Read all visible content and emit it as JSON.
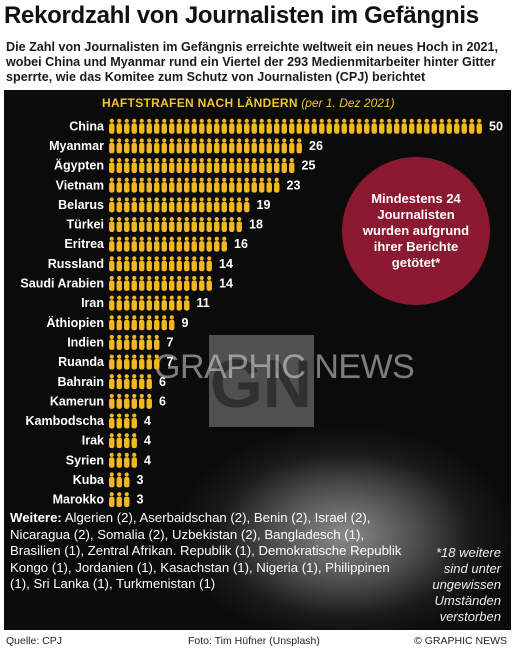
{
  "title": "Rekordzahl von Journalisten im Gefängnis",
  "subtitle": "Die Zahl von Journalisten im Gefängnis erreichte weltweit ein neues Hoch in 2021, wobei China und Myanmar rund ein Viertel der 293 Medienmitarbeiter hinter Gitter sperrte, wie das Komitee zum Schutz von Journalisten (CPJ) berichtet",
  "panel_header": {
    "caps": "HAFTSTRAFEN NACH LÄNDERN",
    "note": "(per 1. Dez 2021)"
  },
  "callout": "Mindestens 24 Journalisten wurden aufgrund ihrer Berichte getötet*",
  "others_label": "Weitere:",
  "others_text": "Algerien (2), Aserbaidschan (2), Benin (2), Israel (2), Nicaragua (2), Somalia (2), Uzbekistan (2), Bangladesch (1), Brasilien (1), Zentral Afrikan. Republik (1), Demokratische Republik Kongo (1), Jordanien (1), Kasachstan (1), Nigeria (1), Philippinen (1), Sri Lanka (1), Turkmenistan (1)",
  "footnote": "*18 weitere sind unter ungewissen Umständen verstorben",
  "watermark": "GRAPHIC NEWS",
  "watermark_logo": "GN",
  "footer": {
    "source": "Quelle: CPJ",
    "photo": "Foto: Tim Hüfner (Unsplash)",
    "copyright": "© GRAPHIC NEWS"
  },
  "colors": {
    "figure": "#f2b81f",
    "callout": "#8b1a30",
    "header": "#f2c230",
    "background": "#111111"
  },
  "chart_data": {
    "type": "bar",
    "orientation": "horizontal",
    "marker": "person-icon",
    "categories": [
      "China",
      "Myanmar",
      "Ägypten",
      "Vietnam",
      "Belarus",
      "Türkei",
      "Eritrea",
      "Russland",
      "Saudi Arabien",
      "Iran",
      "Äthiopien",
      "Indien",
      "Ruanda",
      "Bahrain",
      "Kamerun",
      "Kambodscha",
      "Irak",
      "Syrien",
      "Kuba",
      "Marokko"
    ],
    "values": [
      50,
      26,
      25,
      23,
      19,
      18,
      16,
      14,
      14,
      11,
      9,
      7,
      7,
      6,
      6,
      4,
      4,
      4,
      3,
      3
    ],
    "title": "HAFTSTRAFEN NACH LÄNDERN (per 1. Dez 2021)"
  }
}
